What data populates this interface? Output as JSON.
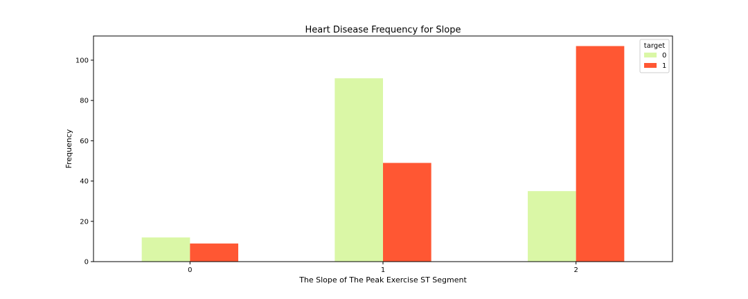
{
  "chart_data": {
    "type": "bar",
    "title": "Heart Disease Frequency for Slope",
    "xlabel": "The Slope of The Peak Exercise ST Segment",
    "ylabel": "Frequency",
    "categories": [
      "0",
      "1",
      "2"
    ],
    "series": [
      {
        "name": "0",
        "color": "#daf7a6",
        "values": [
          12,
          91,
          35
        ]
      },
      {
        "name": "1",
        "color": "#ff5733",
        "values": [
          9,
          49,
          107
        ]
      }
    ],
    "ylim": [
      0,
      112
    ],
    "yticks": [
      0,
      20,
      40,
      60,
      80,
      100
    ],
    "legend": {
      "title": "target",
      "location": "top-right"
    },
    "grid": false
  }
}
